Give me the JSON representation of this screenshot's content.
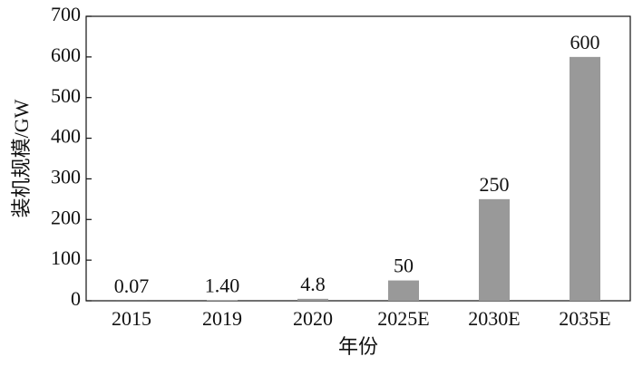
{
  "chart_data": {
    "type": "bar",
    "categories": [
      "2015",
      "2019",
      "2020",
      "2025E",
      "2030E",
      "2035E"
    ],
    "values": [
      0.07,
      1.4,
      4.8,
      50,
      250,
      600
    ],
    "value_labels": [
      "0.07",
      "1.40",
      "4.8",
      "50",
      "250",
      "600"
    ],
    "color": "#999999",
    "x_label": "年份",
    "y_label": "装机规模/GW",
    "ylim": [
      0,
      700
    ],
    "yticks": [
      0,
      100,
      200,
      300,
      400,
      500,
      600,
      700
    ],
    "grid": false
  }
}
